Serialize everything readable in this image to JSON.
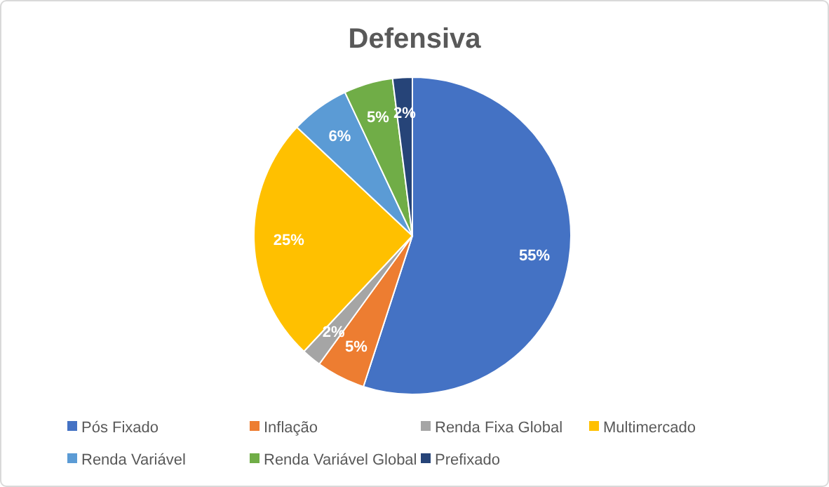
{
  "chart_data": {
    "type": "pie",
    "title": "Defensiva",
    "categories": [
      "Pós Fixado",
      "Inflação",
      "Renda Fixa Global",
      "Multimercado",
      "Renda Variável",
      "Renda Variável Global",
      "Prefixado"
    ],
    "values": [
      55,
      5,
      2,
      25,
      6,
      5,
      2
    ],
    "colors": [
      "#4472c4",
      "#ed7d31",
      "#a5a5a5",
      "#ffc000",
      "#5b9bd5",
      "#70ad47",
      "#264478"
    ],
    "value_labels": [
      "55%",
      "5%",
      "2%",
      "25%",
      "6%",
      "5%",
      "2%"
    ],
    "legend": "bottom"
  }
}
